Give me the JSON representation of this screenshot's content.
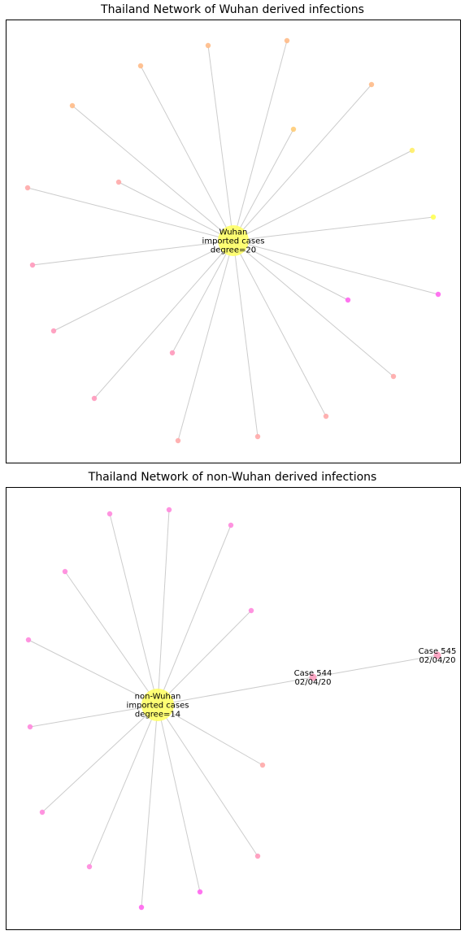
{
  "panels": [
    {
      "title": "Thailand Network of Wuhan derived infections",
      "hub": {
        "lines": [
          "Wuhan",
          "imported cases",
          "degree=20"
        ],
        "color": "#ffff66"
      },
      "edge_color": "#cccccc",
      "leaves": [
        {
          "color": "#ffbb88"
        },
        {
          "color": "#ffbb88"
        },
        {
          "color": "#ffbb88"
        },
        {
          "color": "#ffbb88"
        },
        {
          "color": "#ffbb88"
        },
        {
          "color": "#ffcc77"
        },
        {
          "color": "#ffee66"
        },
        {
          "color": "#ffff55"
        },
        {
          "color": "#ff66ee"
        },
        {
          "color": "#ff66ee"
        },
        {
          "color": "#ffaaaa"
        },
        {
          "color": "#ffaaaa"
        },
        {
          "color": "#ff99bb"
        },
        {
          "color": "#ff99bb"
        },
        {
          "color": "#ff99bb"
        },
        {
          "color": "#ff99bb"
        },
        {
          "color": "#ffaaaa"
        },
        {
          "color": "#ffaaaa"
        },
        {
          "color": "#ffaaaa"
        },
        {
          "color": "#ffaaaa"
        }
      ]
    },
    {
      "title": "Thailand Network of non-Wuhan derived infections",
      "hub": {
        "lines": [
          "non-Wuhan",
          "imported cases",
          "degree=14"
        ],
        "color": "#ffff66"
      },
      "edge_color": "#cccccc",
      "leaves": [
        {
          "color": "#ff88dd"
        },
        {
          "color": "#ff88dd"
        },
        {
          "color": "#ff88dd"
        },
        {
          "color": "#ff88dd"
        },
        {
          "color": "#ff88dd"
        },
        {
          "color": "#ff88dd"
        },
        {
          "color": "#ff88dd"
        },
        {
          "color": "#ff88dd"
        },
        {
          "color": "#ff88dd"
        },
        {
          "color": "#ff66ee"
        },
        {
          "color": "#ff66ee"
        },
        {
          "color": "#ffaaaa"
        },
        {
          "color": "#ff99bb"
        }
      ],
      "cases": [
        {
          "lines": [
            "Case 544",
            "02/04/20"
          ],
          "color": "#ff99bb"
        },
        {
          "lines": [
            "Case 545",
            "02/04/20"
          ],
          "color": "#ff99bb"
        }
      ]
    }
  ]
}
